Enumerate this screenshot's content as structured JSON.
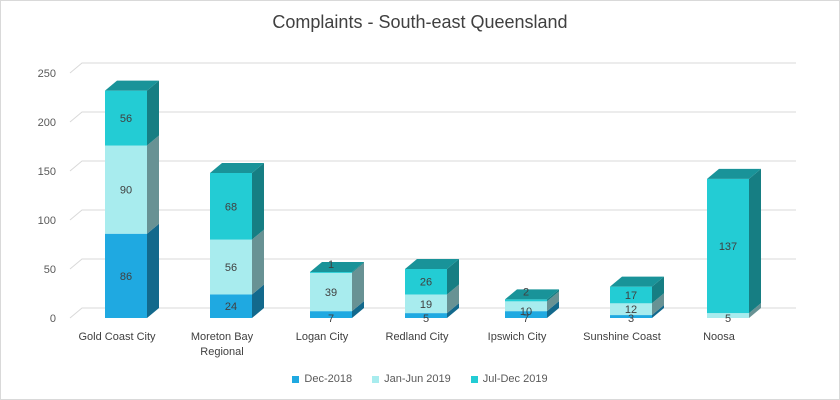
{
  "chart_data": {
    "type": "bar",
    "stacked": true,
    "three_d": true,
    "title": "Complaints - South-east Queensland",
    "categories": [
      "Gold Coast City",
      "Moreton Bay Regional",
      "Logan City",
      "Redland City",
      "Ipswich City",
      "Sunshine Coast",
      "Noosa"
    ],
    "series": [
      {
        "name": "Dec-2018",
        "color": "#1fa9e1",
        "values": [
          86,
          24,
          7,
          5,
          7,
          3,
          0
        ]
      },
      {
        "name": "Jan-Jun 2019",
        "color": "#a8ecee",
        "values": [
          90,
          56,
          39,
          19,
          10,
          12,
          5
        ]
      },
      {
        "name": "Jul-Dec 2019",
        "color": "#23ccd4",
        "values": [
          56,
          68,
          1,
          26,
          2,
          17,
          137
        ]
      }
    ],
    "data_labels": [
      [
        "86",
        "24",
        "7",
        "5",
        "7",
        "3",
        ""
      ],
      [
        "90",
        "56",
        "39",
        "19",
        "10",
        "12",
        "5"
      ],
      [
        "56",
        "68",
        "1",
        "26",
        "2",
        "17",
        "137"
      ]
    ],
    "yticks": [
      "0",
      "50",
      "100",
      "150",
      "200",
      "250"
    ],
    "ylim": [
      0,
      250
    ],
    "grid": true,
    "legend_position": "bottom"
  }
}
